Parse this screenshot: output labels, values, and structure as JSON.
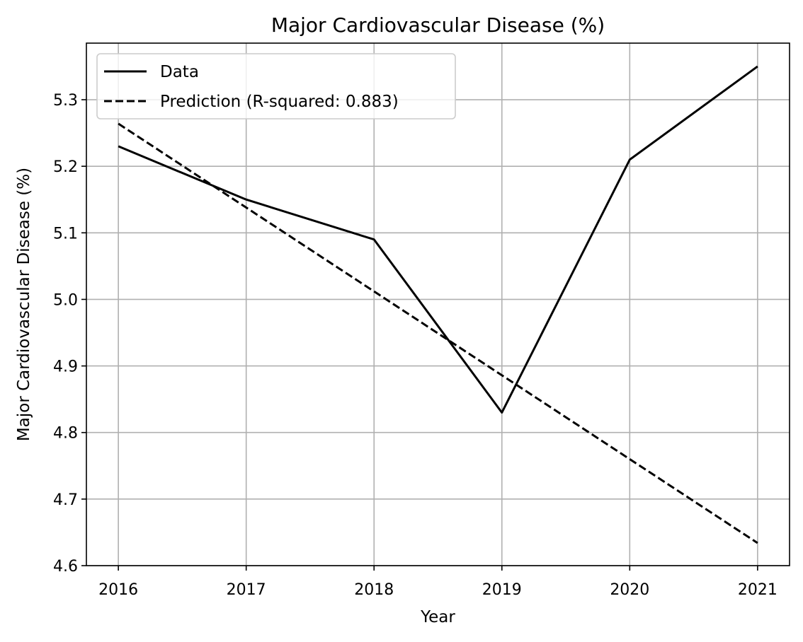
{
  "chart_data": {
    "type": "line",
    "title": "Major Cardiovascular Disease (%)",
    "xlabel": "Year",
    "ylabel": "Major Cardiovascular Disease (%)",
    "x": [
      2016,
      2017,
      2018,
      2019,
      2020,
      2021
    ],
    "x_tick_labels": [
      "2016",
      "2017",
      "2018",
      "2019",
      "2020",
      "2021"
    ],
    "y_ticks": [
      4.6,
      4.7,
      4.8,
      4.9,
      5.0,
      5.1,
      5.2,
      5.3
    ],
    "y_tick_labels": [
      "4.6",
      "4.7",
      "4.8",
      "4.9",
      "5.0",
      "5.1",
      "5.2",
      "5.3"
    ],
    "xlim": [
      2015.75,
      2021.25
    ],
    "ylim": [
      4.6,
      5.385
    ],
    "grid": true,
    "legend_position": "top-left",
    "series": [
      {
        "name": "Data",
        "style": "solid",
        "color": "#000000",
        "values": [
          5.23,
          5.15,
          5.09,
          4.83,
          5.21,
          5.35
        ]
      },
      {
        "name": "Prediction (R-squared: 0.883)",
        "style": "dashed",
        "color": "#000000",
        "values": [
          5.264,
          5.138,
          5.012,
          4.886,
          4.76,
          4.634
        ]
      }
    ]
  }
}
